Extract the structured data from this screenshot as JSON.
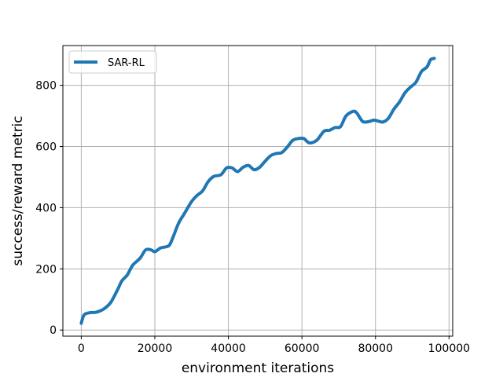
{
  "chart_data": {
    "type": "line",
    "title": "",
    "xlabel": "environment iterations",
    "ylabel": "success/reward metric",
    "xlim": [
      -5000,
      101000
    ],
    "ylim": [
      -20,
      930
    ],
    "xticks": [
      0,
      20000,
      40000,
      60000,
      80000,
      100000
    ],
    "xtick_labels": [
      "0",
      "20000",
      "40000",
      "60000",
      "80000",
      "100000"
    ],
    "yticks": [
      0,
      200,
      400,
      600,
      800
    ],
    "ytick_labels": [
      "0",
      "200",
      "400",
      "600",
      "800"
    ],
    "grid": true,
    "legend_position": "top-left",
    "series": [
      {
        "name": "SAR-RL",
        "color": "#1f77b4",
        "points": [
          [
            0,
            22
          ],
          [
            800,
            50
          ],
          [
            2500,
            57
          ],
          [
            4000,
            58
          ],
          [
            6000,
            68
          ],
          [
            8000,
            90
          ],
          [
            10000,
            135
          ],
          [
            11000,
            160
          ],
          [
            12500,
            180
          ],
          [
            14000,
            212
          ],
          [
            16000,
            235
          ],
          [
            17500,
            262
          ],
          [
            19000,
            262
          ],
          [
            20000,
            256
          ],
          [
            21500,
            268
          ],
          [
            23000,
            272
          ],
          [
            24000,
            278
          ],
          [
            25000,
            305
          ],
          [
            26500,
            350
          ],
          [
            28000,
            380
          ],
          [
            30000,
            420
          ],
          [
            31500,
            440
          ],
          [
            33000,
            455
          ],
          [
            34500,
            485
          ],
          [
            36000,
            502
          ],
          [
            38000,
            508
          ],
          [
            39500,
            530
          ],
          [
            41000,
            530
          ],
          [
            42500,
            518
          ],
          [
            44000,
            532
          ],
          [
            45500,
            538
          ],
          [
            47000,
            524
          ],
          [
            48500,
            532
          ],
          [
            50000,
            552
          ],
          [
            51500,
            570
          ],
          [
            53000,
            577
          ],
          [
            54500,
            580
          ],
          [
            56000,
            598
          ],
          [
            57500,
            620
          ],
          [
            59000,
            626
          ],
          [
            60500,
            626
          ],
          [
            62000,
            612
          ],
          [
            64000,
            620
          ],
          [
            66000,
            650
          ],
          [
            67500,
            653
          ],
          [
            69000,
            662
          ],
          [
            70500,
            665
          ],
          [
            72000,
            700
          ],
          [
            74000,
            715
          ],
          [
            75000,
            708
          ],
          [
            76500,
            682
          ],
          [
            78000,
            681
          ],
          [
            79500,
            686
          ],
          [
            80500,
            684
          ],
          [
            82000,
            680
          ],
          [
            83500,
            692
          ],
          [
            85000,
            722
          ],
          [
            86500,
            745
          ],
          [
            88000,
            775
          ],
          [
            89500,
            794
          ],
          [
            91000,
            810
          ],
          [
            92500,
            845
          ],
          [
            94000,
            860
          ],
          [
            95000,
            884
          ],
          [
            96000,
            888
          ]
        ]
      }
    ]
  }
}
